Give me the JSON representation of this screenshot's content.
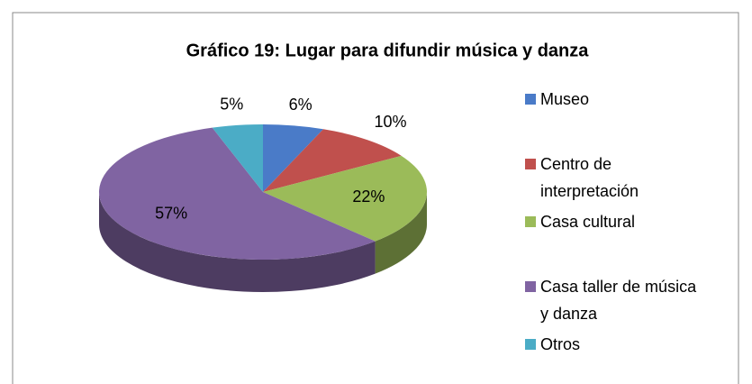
{
  "chart_data": {
    "type": "pie",
    "title": "Gráfico 19: Lugar para difundir música y danza",
    "categories": [
      "Museo",
      "Centro de interpretación",
      "Casa cultural",
      "Casa taller de música y danza",
      "Otros"
    ],
    "values": [
      6,
      10,
      22,
      57,
      5
    ],
    "value_labels": [
      "6%",
      "10%",
      "22%",
      "57%",
      "5%"
    ],
    "colors": [
      "#4a7bc8",
      "#c0504d",
      "#9bbb59",
      "#8064a2",
      "#4bacc6"
    ],
    "legend": "right"
  }
}
